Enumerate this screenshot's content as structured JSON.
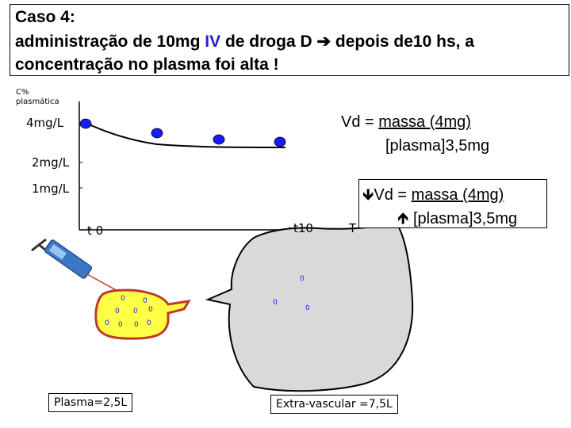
{
  "title": {
    "line1": "Caso 4:",
    "line2_a": " administração de 10mg ",
    "line2_iv": "IV",
    "line2_b": " de droga D ",
    "line2_arrow": "➔",
    "line2_c": " depois de10 hs, a",
    "line3": "concentração no plasma foi alta !"
  },
  "axis": {
    "ylabel_line1": "C%",
    "ylabel_line2": "plasmática",
    "y_ticks": [
      "4mg/L",
      "2mg/L",
      "1mg/L"
    ],
    "x_ticks": [
      "t 0",
      "t10",
      "T"
    ]
  },
  "vd_box1": {
    "line1_prefix": "Vd = ",
    "line1_under": " massa  (4mg)",
    "line2": "[plasma]3,5mg"
  },
  "vd_box2": {
    "down_arrow": "🡻",
    "line1_prefix": "Vd = ",
    "line1_under": " massa (4mg)",
    "up_arrow": "🡹",
    "line2": "[plasma]3,5mg"
  },
  "compartments": {
    "plasma_caption": "Plasma=2,5L",
    "extravascular_caption": "Extra-vascular =7,5L",
    "particle_label": "0"
  },
  "colors": {
    "iv_text": "#1f1fd0",
    "curve_points": "#1a1aff",
    "plasma_fill": "#ffff44",
    "plasma_stroke": "#c0392b",
    "tissue_fill": "#d9d9d9",
    "particles": "#1a1aff"
  }
}
